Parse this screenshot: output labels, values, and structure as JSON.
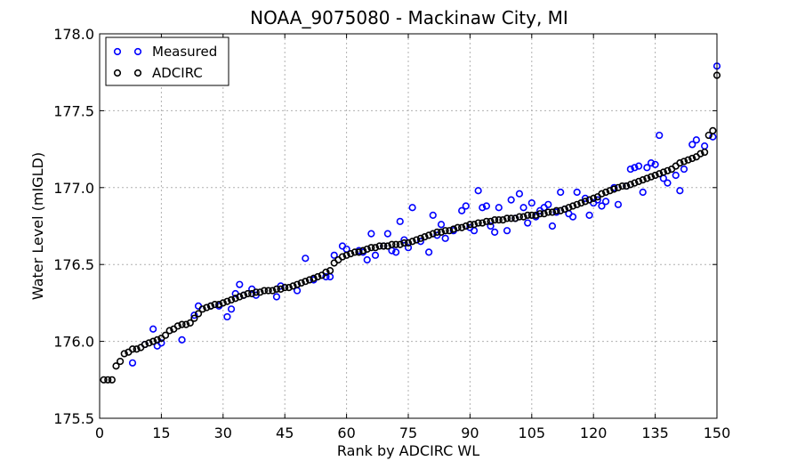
{
  "chart_data": {
    "type": "scatter",
    "title": "NOAA_9075080 - Mackinaw City, MI",
    "xlabel": "Rank by ADCIRC WL",
    "ylabel": "Water Level (mIGLD)",
    "xlim": [
      0,
      150
    ],
    "ylim": [
      175.5,
      178.0
    ],
    "xticks": [
      "0",
      "15",
      "30",
      "45",
      "60",
      "75",
      "90",
      "105",
      "120",
      "135",
      "150"
    ],
    "yticks": [
      "175.5",
      "176.0",
      "176.5",
      "177.0",
      "177.5",
      "178.0"
    ],
    "grid": true,
    "legend_position": "top-left",
    "series": [
      {
        "name": "Measured",
        "color": "#0000ff",
        "points": [
          [
            8,
            175.86
          ],
          [
            11,
            175.98
          ],
          [
            13,
            176.08
          ],
          [
            14,
            175.97
          ],
          [
            15,
            175.99
          ],
          [
            20,
            176.01
          ],
          [
            23,
            176.17
          ],
          [
            24,
            176.23
          ],
          [
            27,
            176.23
          ],
          [
            29,
            176.23
          ],
          [
            31,
            176.16
          ],
          [
            32,
            176.21
          ],
          [
            33,
            176.31
          ],
          [
            34,
            176.37
          ],
          [
            35,
            176.3
          ],
          [
            37,
            176.34
          ],
          [
            38,
            176.3
          ],
          [
            43,
            176.29
          ],
          [
            44,
            176.36
          ],
          [
            48,
            176.33
          ],
          [
            50,
            176.54
          ],
          [
            52,
            176.4
          ],
          [
            55,
            176.42
          ],
          [
            56,
            176.42
          ],
          [
            57,
            176.56
          ],
          [
            59,
            176.62
          ],
          [
            60,
            176.6
          ],
          [
            63,
            176.59
          ],
          [
            64,
            176.58
          ],
          [
            65,
            176.53
          ],
          [
            66,
            176.7
          ],
          [
            67,
            176.56
          ],
          [
            69,
            176.62
          ],
          [
            70,
            176.7
          ],
          [
            71,
            176.59
          ],
          [
            72,
            176.58
          ],
          [
            73,
            176.78
          ],
          [
            74,
            176.66
          ],
          [
            75,
            176.61
          ],
          [
            76,
            176.87
          ],
          [
            78,
            176.65
          ],
          [
            80,
            176.58
          ],
          [
            81,
            176.82
          ],
          [
            82,
            176.69
          ],
          [
            83,
            176.76
          ],
          [
            84,
            176.67
          ],
          [
            86,
            176.72
          ],
          [
            88,
            176.85
          ],
          [
            89,
            176.88
          ],
          [
            90,
            176.74
          ],
          [
            91,
            176.72
          ],
          [
            92,
            176.98
          ],
          [
            93,
            176.87
          ],
          [
            94,
            176.88
          ],
          [
            95,
            176.75
          ],
          [
            96,
            176.71
          ],
          [
            97,
            176.87
          ],
          [
            99,
            176.72
          ],
          [
            100,
            176.92
          ],
          [
            101,
            176.8
          ],
          [
            102,
            176.96
          ],
          [
            103,
            176.87
          ],
          [
            104,
            176.77
          ],
          [
            105,
            176.9
          ],
          [
            106,
            176.81
          ],
          [
            107,
            176.85
          ],
          [
            108,
            176.87
          ],
          [
            109,
            176.89
          ],
          [
            110,
            176.75
          ],
          [
            111,
            176.84
          ],
          [
            112,
            176.97
          ],
          [
            113,
            176.86
          ],
          [
            114,
            176.83
          ],
          [
            115,
            176.81
          ],
          [
            116,
            176.97
          ],
          [
            118,
            176.93
          ],
          [
            119,
            176.82
          ],
          [
            120,
            176.9
          ],
          [
            121,
            176.92
          ],
          [
            122,
            176.88
          ],
          [
            123,
            176.91
          ],
          [
            125,
            177.0
          ],
          [
            126,
            176.89
          ],
          [
            128,
            177.01
          ],
          [
            129,
            177.12
          ],
          [
            130,
            177.13
          ],
          [
            131,
            177.14
          ],
          [
            132,
            176.97
          ],
          [
            133,
            177.13
          ],
          [
            134,
            177.16
          ],
          [
            135,
            177.15
          ],
          [
            136,
            177.34
          ],
          [
            137,
            177.06
          ],
          [
            138,
            177.03
          ],
          [
            140,
            177.08
          ],
          [
            141,
            176.98
          ],
          [
            142,
            177.12
          ],
          [
            144,
            177.28
          ],
          [
            145,
            177.31
          ],
          [
            147,
            177.27
          ],
          [
            149,
            177.33
          ],
          [
            150,
            177.79
          ]
        ]
      },
      {
        "name": "ADCIRC",
        "color": "#000000",
        "points": [
          [
            1,
            175.75
          ],
          [
            2,
            175.75
          ],
          [
            3,
            175.75
          ],
          [
            4,
            175.84
          ],
          [
            5,
            175.87
          ],
          [
            6,
            175.92
          ],
          [
            7,
            175.93
          ],
          [
            8,
            175.95
          ],
          [
            9,
            175.95
          ],
          [
            10,
            175.96
          ],
          [
            11,
            175.98
          ],
          [
            12,
            175.99
          ],
          [
            13,
            176.0
          ],
          [
            14,
            176.01
          ],
          [
            15,
            176.02
          ],
          [
            16,
            176.04
          ],
          [
            17,
            176.07
          ],
          [
            18,
            176.08
          ],
          [
            19,
            176.1
          ],
          [
            20,
            176.11
          ],
          [
            21,
            176.11
          ],
          [
            22,
            176.12
          ],
          [
            23,
            176.15
          ],
          [
            24,
            176.18
          ],
          [
            25,
            176.21
          ],
          [
            26,
            176.22
          ],
          [
            27,
            176.23
          ],
          [
            28,
            176.24
          ],
          [
            29,
            176.24
          ],
          [
            30,
            176.25
          ],
          [
            31,
            176.26
          ],
          [
            32,
            176.27
          ],
          [
            33,
            176.28
          ],
          [
            34,
            176.29
          ],
          [
            35,
            176.3
          ],
          [
            36,
            176.31
          ],
          [
            37,
            176.31
          ],
          [
            38,
            176.32
          ],
          [
            39,
            176.32
          ],
          [
            40,
            176.33
          ],
          [
            41,
            176.33
          ],
          [
            42,
            176.33
          ],
          [
            43,
            176.34
          ],
          [
            44,
            176.34
          ],
          [
            45,
            176.35
          ],
          [
            46,
            176.35
          ],
          [
            47,
            176.36
          ],
          [
            48,
            176.37
          ],
          [
            49,
            176.38
          ],
          [
            50,
            176.39
          ],
          [
            51,
            176.4
          ],
          [
            52,
            176.41
          ],
          [
            53,
            176.42
          ],
          [
            54,
            176.43
          ],
          [
            55,
            176.45
          ],
          [
            56,
            176.46
          ],
          [
            57,
            176.51
          ],
          [
            58,
            176.53
          ],
          [
            59,
            176.55
          ],
          [
            60,
            176.56
          ],
          [
            61,
            176.57
          ],
          [
            62,
            176.58
          ],
          [
            63,
            176.58
          ],
          [
            64,
            176.59
          ],
          [
            65,
            176.6
          ],
          [
            66,
            176.61
          ],
          [
            67,
            176.61
          ],
          [
            68,
            176.62
          ],
          [
            69,
            176.62
          ],
          [
            70,
            176.62
          ],
          [
            71,
            176.63
          ],
          [
            72,
            176.63
          ],
          [
            73,
            176.63
          ],
          [
            74,
            176.64
          ],
          [
            75,
            176.64
          ],
          [
            76,
            176.65
          ],
          [
            77,
            176.66
          ],
          [
            78,
            176.67
          ],
          [
            79,
            176.68
          ],
          [
            80,
            176.69
          ],
          [
            81,
            176.7
          ],
          [
            82,
            176.71
          ],
          [
            83,
            176.71
          ],
          [
            84,
            176.72
          ],
          [
            85,
            176.72
          ],
          [
            86,
            176.73
          ],
          [
            87,
            176.74
          ],
          [
            88,
            176.74
          ],
          [
            89,
            176.75
          ],
          [
            90,
            176.76
          ],
          [
            91,
            176.76
          ],
          [
            92,
            176.77
          ],
          [
            93,
            176.77
          ],
          [
            94,
            176.78
          ],
          [
            95,
            176.78
          ],
          [
            96,
            176.79
          ],
          [
            97,
            176.79
          ],
          [
            98,
            176.79
          ],
          [
            99,
            176.8
          ],
          [
            100,
            176.8
          ],
          [
            101,
            176.8
          ],
          [
            102,
            176.81
          ],
          [
            103,
            176.81
          ],
          [
            104,
            176.82
          ],
          [
            105,
            176.82
          ],
          [
            106,
            176.82
          ],
          [
            107,
            176.83
          ],
          [
            108,
            176.83
          ],
          [
            109,
            176.84
          ],
          [
            110,
            176.84
          ],
          [
            111,
            176.85
          ],
          [
            112,
            176.85
          ],
          [
            113,
            176.86
          ],
          [
            114,
            176.87
          ],
          [
            115,
            176.88
          ],
          [
            116,
            176.89
          ],
          [
            117,
            176.9
          ],
          [
            118,
            176.91
          ],
          [
            119,
            176.92
          ],
          [
            120,
            176.93
          ],
          [
            121,
            176.94
          ],
          [
            122,
            176.96
          ],
          [
            123,
            176.97
          ],
          [
            124,
            176.98
          ],
          [
            125,
            176.99
          ],
          [
            126,
            177.0
          ],
          [
            127,
            177.01
          ],
          [
            128,
            177.01
          ],
          [
            129,
            177.02
          ],
          [
            130,
            177.03
          ],
          [
            131,
            177.04
          ],
          [
            132,
            177.05
          ],
          [
            133,
            177.06
          ],
          [
            134,
            177.07
          ],
          [
            135,
            177.08
          ],
          [
            136,
            177.09
          ],
          [
            137,
            177.1
          ],
          [
            138,
            177.11
          ],
          [
            139,
            177.12
          ],
          [
            140,
            177.14
          ],
          [
            141,
            177.16
          ],
          [
            142,
            177.17
          ],
          [
            143,
            177.18
          ],
          [
            144,
            177.19
          ],
          [
            145,
            177.2
          ],
          [
            146,
            177.22
          ],
          [
            147,
            177.23
          ],
          [
            148,
            177.34
          ],
          [
            149,
            177.37
          ],
          [
            150,
            177.73
          ]
        ]
      }
    ]
  }
}
